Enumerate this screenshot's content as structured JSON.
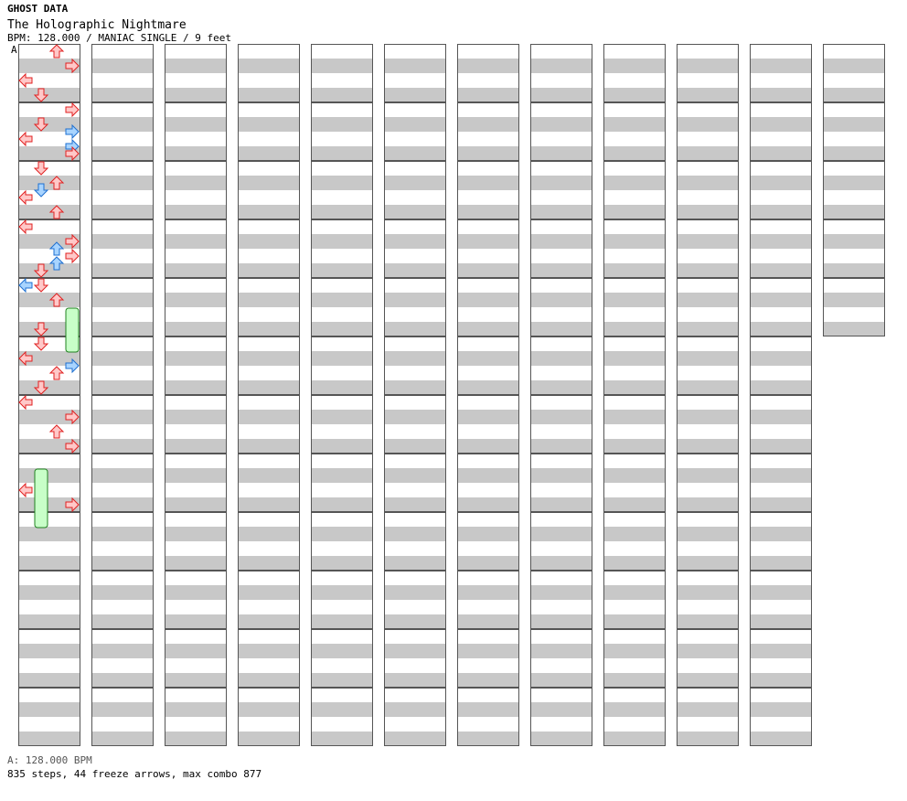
{
  "header": {
    "label": "GHOST DATA",
    "song_title": "The Holographic Nightmare",
    "meta": "BPM: 128.000 / MANIAC SINGLE / 9 feet",
    "bpm_marker": "A"
  },
  "footer": {
    "bpm_line": "A: 128.000 BPM",
    "stats_line": "835 steps, 44 freeze arrows, max combo 877"
  },
  "colors": {
    "stripe": "#c8c8c8",
    "border": "#555555",
    "quarter_fill": "#ffc8c8",
    "quarter_stroke": "#e02020",
    "eighth_fill": "#a8d4ff",
    "eighth_stroke": "#1e6fd0",
    "sixteenth_fill": "#ffc8ff",
    "sixteenth_stroke": "#c040c0",
    "freeze_fill": "#c8ffc8",
    "freeze_stroke": "#208020"
  },
  "chart_data": {
    "type": "step-chart",
    "columns": 12,
    "measures_per_column": 12,
    "rows_per_measure": 16,
    "total_measures": 137,
    "lanes": [
      "left",
      "down",
      "up",
      "right"
    ],
    "steps": 835,
    "freeze_arrows": 44,
    "max_combo": 877,
    "bpm": 128.0,
    "difficulty": "MANIAC SINGLE",
    "feet": 9,
    "notes": [
      {
        "m": 0,
        "r": 0,
        "lane": "up",
        "type": "q"
      },
      {
        "m": 0,
        "r": 4,
        "lane": "right",
        "type": "q"
      },
      {
        "m": 0,
        "r": 8,
        "lane": "left",
        "type": "q"
      },
      {
        "m": 0,
        "r": 12,
        "lane": "down",
        "type": "q"
      },
      {
        "m": 1,
        "r": 0,
        "lane": "right",
        "type": "q"
      },
      {
        "m": 1,
        "r": 4,
        "lane": "down",
        "type": "q"
      },
      {
        "m": 1,
        "r": 6,
        "lane": "right",
        "type": "e"
      },
      {
        "m": 1,
        "r": 8,
        "lane": "left",
        "type": "q"
      },
      {
        "m": 1,
        "r": 10,
        "lane": "right",
        "type": "e"
      },
      {
        "m": 1,
        "r": 12,
        "lane": "right",
        "type": "q"
      },
      {
        "m": 2,
        "r": 0,
        "lane": "down",
        "type": "q"
      },
      {
        "m": 2,
        "r": 4,
        "lane": "up",
        "type": "q"
      },
      {
        "m": 2,
        "r": 6,
        "lane": "down",
        "type": "e"
      },
      {
        "m": 2,
        "r": 8,
        "lane": "left",
        "type": "q"
      },
      {
        "m": 2,
        "r": 12,
        "lane": "up",
        "type": "q"
      },
      {
        "m": 3,
        "r": 0,
        "lane": "left",
        "type": "q"
      },
      {
        "m": 3,
        "r": 4,
        "lane": "right",
        "type": "q"
      },
      {
        "m": 3,
        "r": 6,
        "lane": "up",
        "type": "e"
      },
      {
        "m": 3,
        "r": 8,
        "lane": "right",
        "type": "q"
      },
      {
        "m": 3,
        "r": 10,
        "lane": "up",
        "type": "e"
      },
      {
        "m": 3,
        "r": 12,
        "lane": "down",
        "type": "q"
      },
      {
        "m": 4,
        "r": 0,
        "lane": "left",
        "type": "e"
      },
      {
        "m": 4,
        "r": 0,
        "lane": "down",
        "type": "q"
      },
      {
        "m": 4,
        "r": 4,
        "lane": "up",
        "type": "q"
      },
      {
        "m": 4,
        "r": 8,
        "lane": "right",
        "type": "f",
        "len": 3
      },
      {
        "m": 4,
        "r": 12,
        "lane": "down",
        "type": "q"
      },
      {
        "m": 5,
        "r": 0,
        "lane": "down",
        "type": "q"
      },
      {
        "m": 5,
        "r": 4,
        "lane": "left",
        "type": "q"
      },
      {
        "m": 5,
        "r": 6,
        "lane": "right",
        "type": "e"
      },
      {
        "m": 5,
        "r": 8,
        "lane": "up",
        "type": "q"
      },
      {
        "m": 5,
        "r": 12,
        "lane": "down",
        "type": "q"
      },
      {
        "m": 6,
        "r": 0,
        "lane": "left",
        "type": "q"
      },
      {
        "m": 6,
        "r": 4,
        "lane": "right",
        "type": "q"
      },
      {
        "m": 6,
        "r": 8,
        "lane": "up",
        "type": "q"
      },
      {
        "m": 6,
        "r": 12,
        "lane": "right",
        "type": "q"
      },
      {
        "m": 7,
        "r": 4,
        "lane": "down",
        "type": "f",
        "len": 4
      },
      {
        "m": 7,
        "r": 8,
        "lane": "left",
        "type": "q"
      },
      {
        "m": 7,
        "r": 12,
        "lane": "right",
        "type": "q"
      }
    ]
  }
}
